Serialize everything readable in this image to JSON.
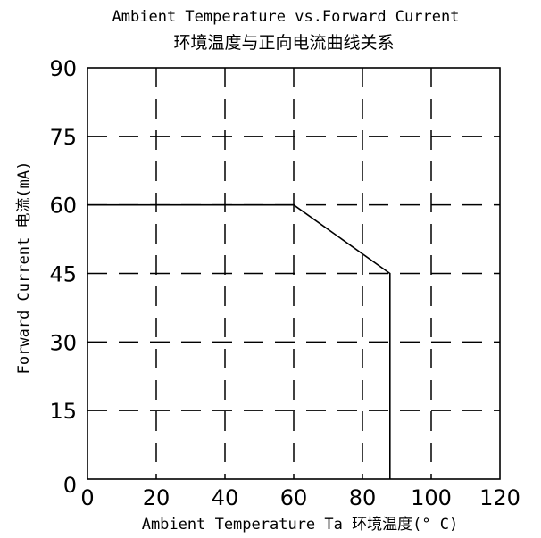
{
  "chart_data": {
    "type": "line",
    "title": "Ambient Temperature vs.Forward Current",
    "subtitle": "环境温度与正向电流曲线关系",
    "xlabel": "Ambient Temperature Ta 环境温度(° C)",
    "ylabel": "Forward Current 电流(mA)",
    "xlim": [
      0,
      120
    ],
    "ylim": [
      0,
      90
    ],
    "x_ticks": [
      "0",
      "20",
      "40",
      "60",
      "80",
      "100",
      "120"
    ],
    "y_ticks": [
      "0",
      "15",
      "30",
      "45",
      "60",
      "75",
      "90"
    ],
    "grid": true,
    "series": [
      {
        "x": [
          0,
          60,
          88,
          88
        ],
        "y": [
          60,
          60,
          45,
          0
        ]
      }
    ]
  },
  "colors": {
    "line": "#000000",
    "grid": "#000000",
    "background": "#ffffff"
  }
}
